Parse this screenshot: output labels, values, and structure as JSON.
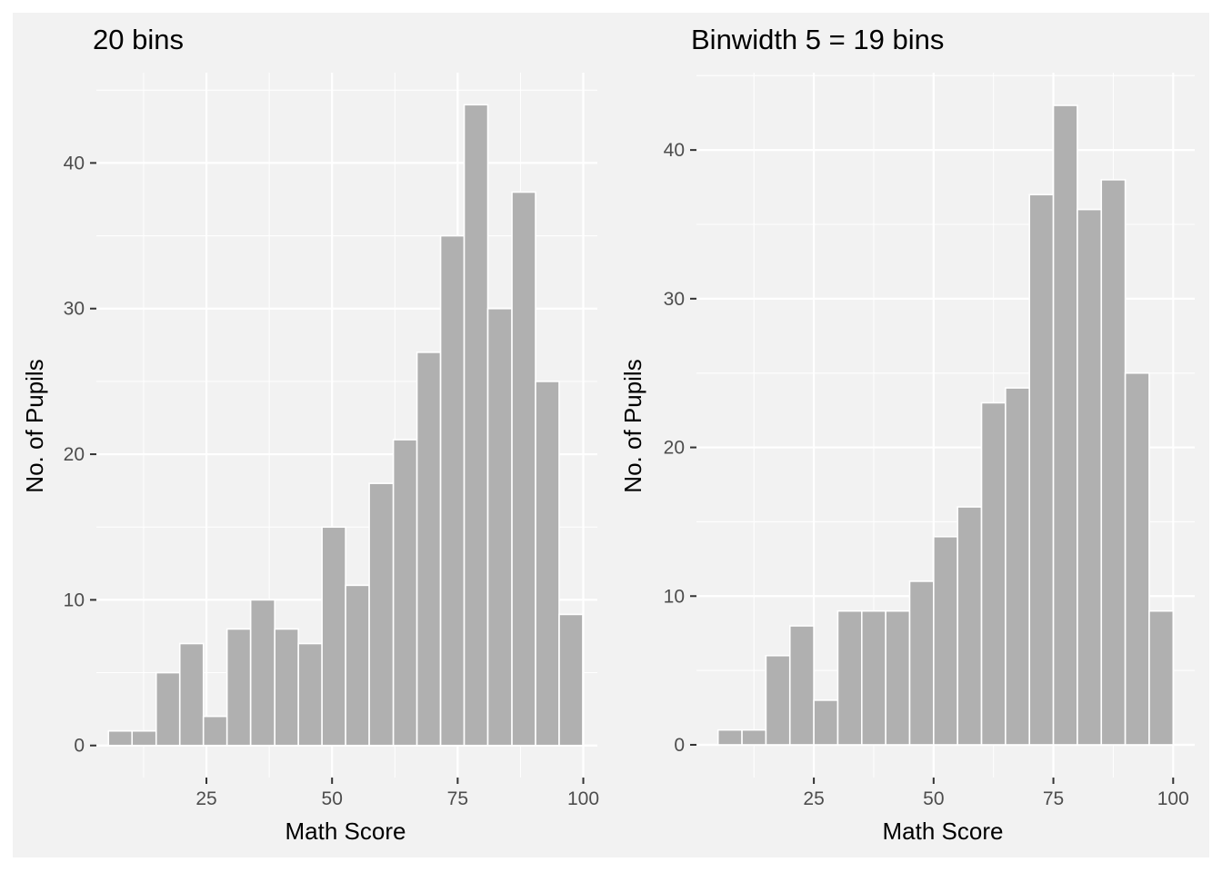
{
  "colors": {
    "panel_bg": "#f2f2f2",
    "bar_fill": "#b0b0b0",
    "bar_outline": "#ffffff",
    "grid": "#ffffff",
    "tick_text": "#4d4d4d"
  },
  "chart_data": [
    {
      "type": "bar",
      "title": "20 bins",
      "xlabel": "Math Score",
      "ylabel": "No. of Pupils",
      "xlim": [
        3.1,
        102.8
      ],
      "ylim": [
        -2.2,
        46.2
      ],
      "xticks": [
        25,
        50,
        75,
        100
      ],
      "xticks_minor": [
        12.5,
        37.5,
        62.5,
        87.5
      ],
      "yticks": [
        0,
        10,
        20,
        30,
        40
      ],
      "yticks_minor": [
        5,
        15,
        25,
        35,
        45
      ],
      "grid": true,
      "bin_edges": [
        5.5,
        10.2,
        15.0,
        19.7,
        24.4,
        29.1,
        33.8,
        38.6,
        43.3,
        48.0,
        52.7,
        57.4,
        62.2,
        66.9,
        71.6,
        76.3,
        81.0,
        85.8,
        90.5,
        95.2,
        99.9
      ],
      "values": [
        1,
        1,
        5,
        7,
        2,
        8,
        10,
        8,
        7,
        15,
        11,
        18,
        21,
        27,
        35,
        44,
        30,
        38,
        25,
        9
      ]
    },
    {
      "type": "bar",
      "title": "Binwidth 5 = 19 bins",
      "xlabel": "Math Score",
      "ylabel": "No. of Pupils",
      "xlim": [
        0.5,
        104.5
      ],
      "ylim": [
        -2.2,
        45.2
      ],
      "xticks": [
        25,
        50,
        75,
        100
      ],
      "xticks_minor": [
        12.5,
        37.5,
        62.5,
        87.5
      ],
      "yticks": [
        0,
        10,
        20,
        30,
        40
      ],
      "yticks_minor": [
        5,
        15,
        25,
        35,
        45
      ],
      "grid": true,
      "bin_edges": [
        5,
        10,
        15,
        20,
        25,
        30,
        35,
        40,
        45,
        50,
        55,
        60,
        65,
        70,
        75,
        80,
        85,
        90,
        95,
        100
      ],
      "values": [
        1,
        1,
        6,
        8,
        3,
        9,
        9,
        9,
        11,
        14,
        16,
        23,
        24,
        37,
        43,
        36,
        38,
        25,
        9
      ]
    }
  ]
}
